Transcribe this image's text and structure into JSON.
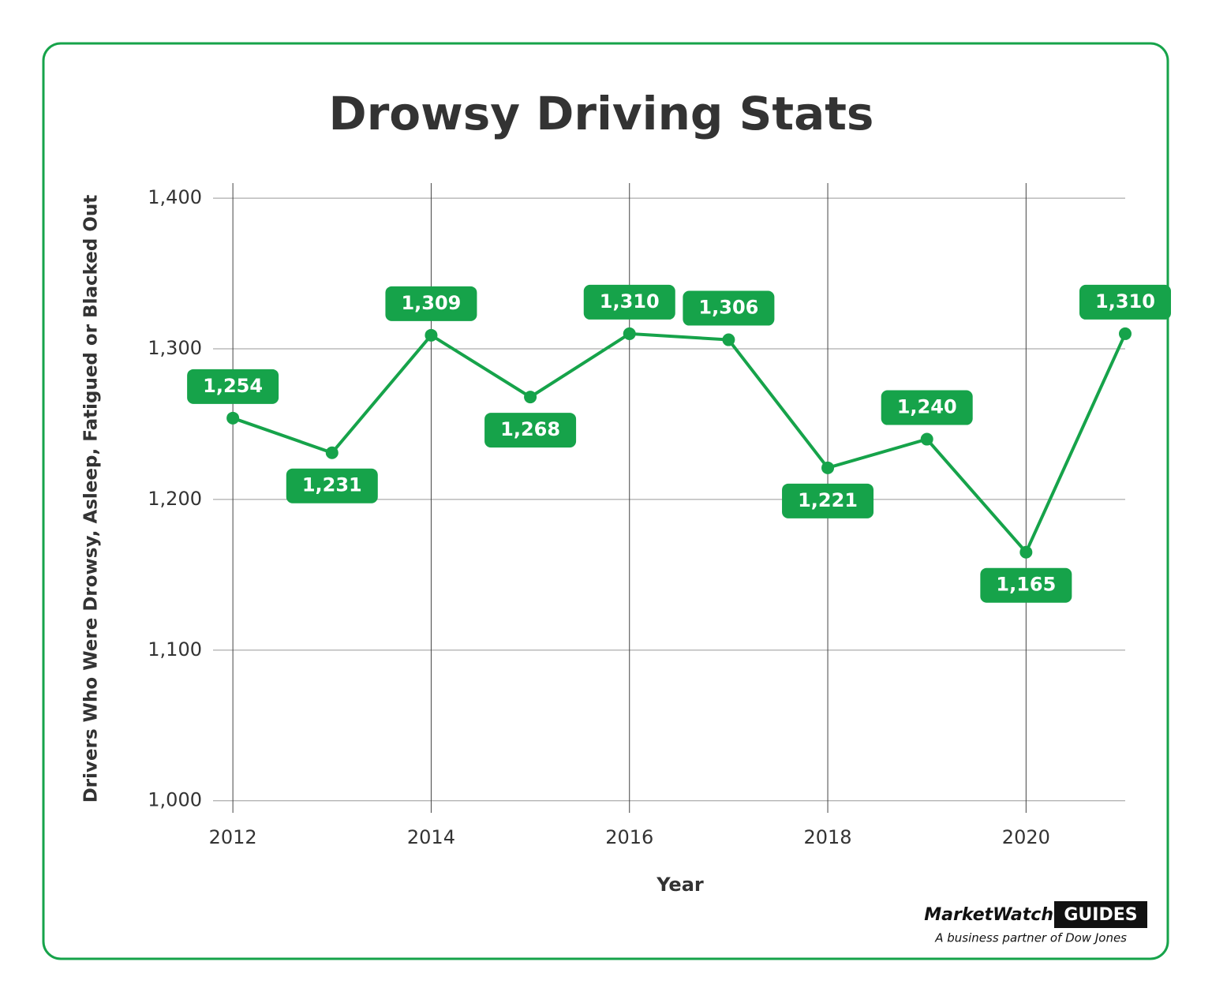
{
  "chart_data": {
    "type": "line",
    "title": "Drowsy Driving Stats",
    "x_label": "Year",
    "y_label": "Drivers Who Were Drowsy, Asleep, Fatigued or Blacked Out",
    "x": [
      2012,
      2013,
      2014,
      2015,
      2016,
      2017,
      2018,
      2019,
      2020,
      2021
    ],
    "values": [
      1254,
      1231,
      1309,
      1268,
      1310,
      1306,
      1221,
      1240,
      1165,
      1310
    ],
    "value_labels": [
      "1,254",
      "1,231",
      "1,309",
      "1,268",
      "1,310",
      "1,306",
      "1,221",
      "1,240",
      "1,165",
      "1,310"
    ],
    "color": "#16a34a",
    "xlim": [
      2011.8,
      2021
    ],
    "xticks": [
      2012,
      2014,
      2016,
      2018,
      2020
    ],
    "ylim": [
      992,
      1410
    ],
    "yticks": [
      {
        "value": 1000,
        "label": "1,000"
      },
      {
        "value": 1100,
        "label": "1,100"
      },
      {
        "value": 1200,
        "label": "1,200"
      },
      {
        "value": 1300,
        "label": "1,300"
      },
      {
        "value": 1400,
        "label": "1,400"
      }
    ],
    "grid": true
  },
  "logo": {
    "brand": "MarketWatch",
    "badge": "GUIDES",
    "tagline": "A business partner of Dow Jones"
  }
}
